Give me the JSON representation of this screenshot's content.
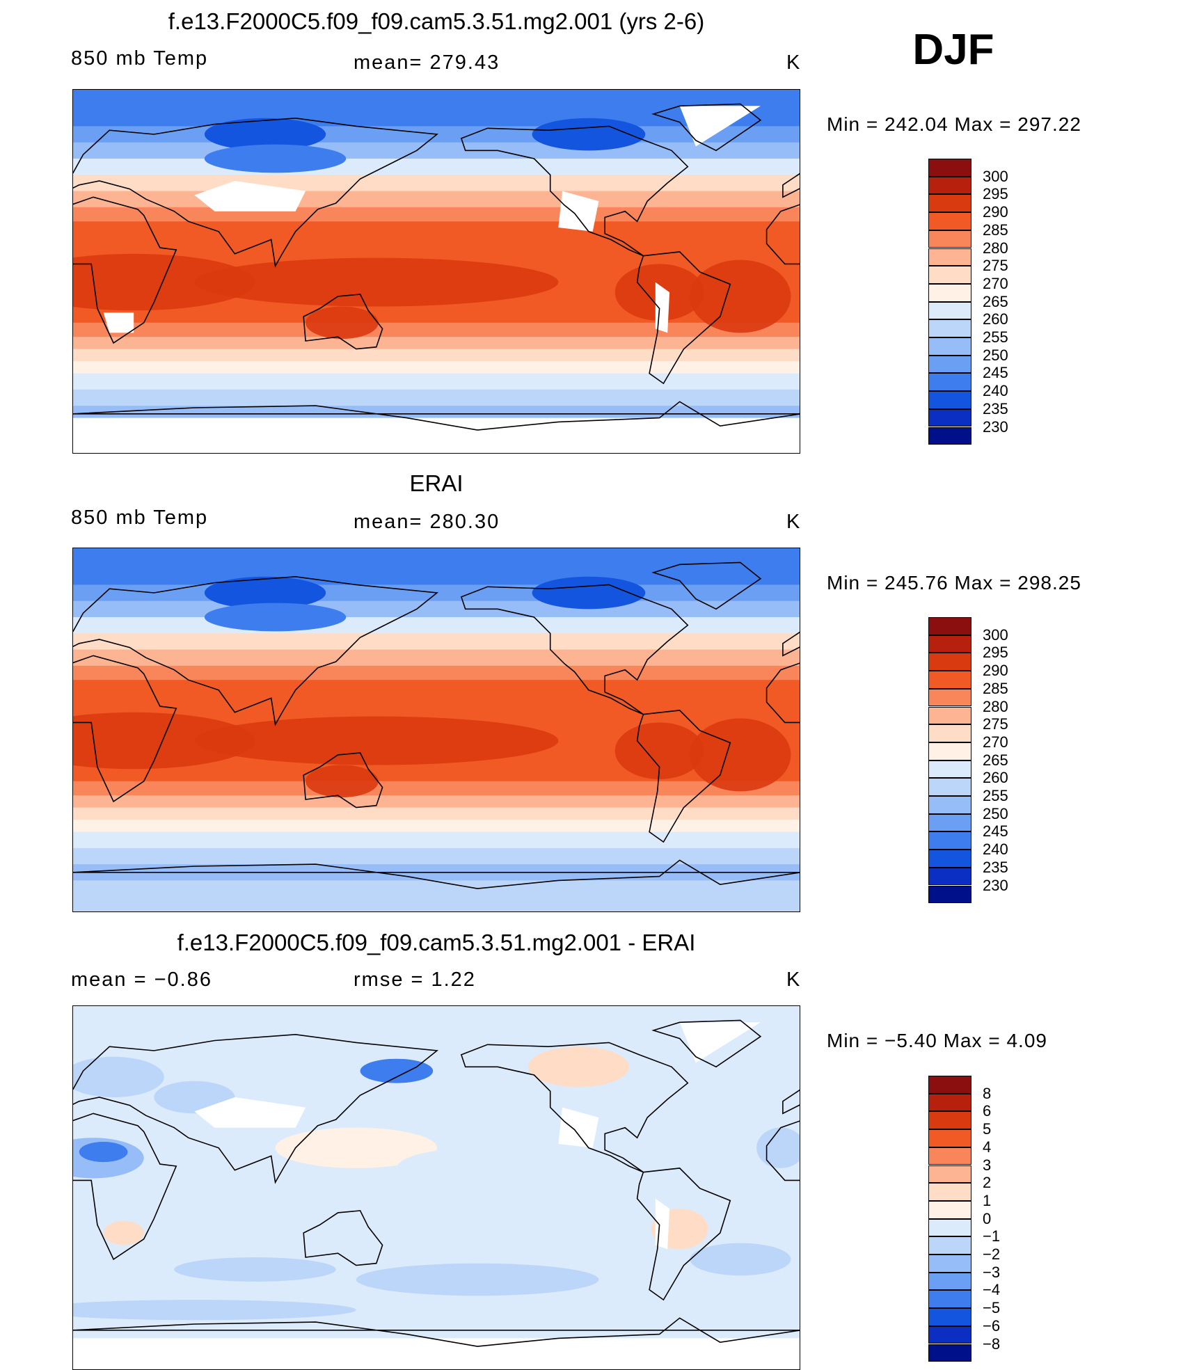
{
  "season": "DJF",
  "units": "K",
  "panels": [
    {
      "title": "f.e13.F2000C5.f09_f09.cam5.3.51.mg2.001 (yrs 2-6)",
      "left_label": "850 mb Temp",
      "center_label": "mean= 279.43",
      "units": "K",
      "min_max": "Min = 242.04 Max = 297.22",
      "map_kind": "absolute"
    },
    {
      "title": "ERAI",
      "left_label": "850 mb Temp",
      "center_label": "mean= 280.30",
      "units": "K",
      "min_max": "Min = 245.76 Max = 298.25",
      "map_kind": "absolute"
    },
    {
      "title": "f.e13.F2000C5.f09_f09.cam5.3.51.mg2.001 - ERAI",
      "left_label": "mean =   −0.86",
      "center_label": "rmse =    1.22",
      "units": "K",
      "min_max": "Min =  −5.40 Max =   4.09",
      "map_kind": "difference"
    }
  ],
  "colorbars": {
    "absolute": {
      "labels": [
        "300",
        "295",
        "290",
        "285",
        "280",
        "275",
        "270",
        "265",
        "260",
        "255",
        "250",
        "245",
        "240",
        "235",
        "230"
      ],
      "colors": [
        "#8b0f0f",
        "#b8200e",
        "#da3a10",
        "#f15a24",
        "#f8865a",
        "#fcb493",
        "#ffdcc6",
        "#fff1e6",
        "#dcebfb",
        "#bcd6fa",
        "#96bdf7",
        "#6a9ff3",
        "#3e7ded",
        "#1455e0",
        "#0a2fc2",
        "#000f8a"
      ]
    },
    "difference": {
      "labels": [
        "8",
        "6",
        "5",
        "4",
        "3",
        "2",
        "1",
        "0",
        "−1",
        "−2",
        "−3",
        "−4",
        "−5",
        "−6",
        "−8"
      ],
      "colors": [
        "#8b0f0f",
        "#b8200e",
        "#da3a10",
        "#f15a24",
        "#f8865a",
        "#fcb493",
        "#ffdcc6",
        "#fff1e6",
        "#dcebfb",
        "#bcd6fa",
        "#96bdf7",
        "#6a9ff3",
        "#3e7ded",
        "#1455e0",
        "#0a2fc2",
        "#000f8a"
      ]
    }
  },
  "map_colors": {
    "missing": "#ffffff",
    "coast": "#000000"
  }
}
